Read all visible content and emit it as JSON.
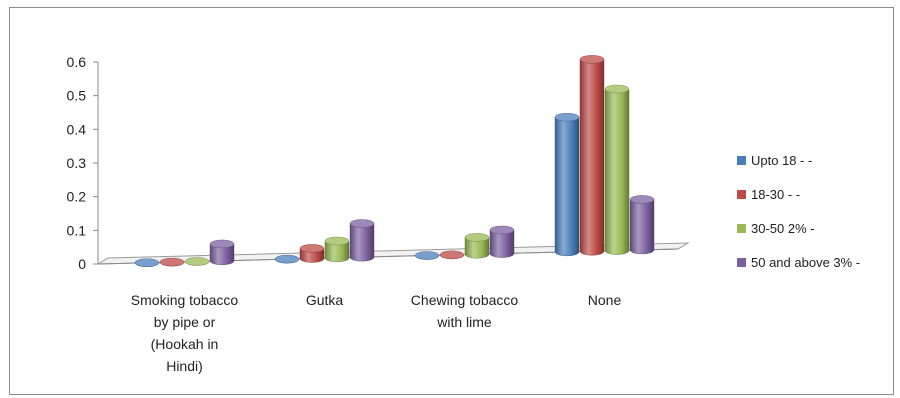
{
  "chart_data": {
    "type": "bar",
    "title": "",
    "xlabel": "",
    "ylabel": "",
    "ylim": [
      0,
      0.6
    ],
    "yticks": [
      "0",
      "0.1",
      "0.2",
      "0.3",
      "0.4",
      "0.5",
      "0.6"
    ],
    "categories": [
      [
        "Smoking tobacco",
        "by pipe or",
        "(Hookah in",
        "Hindi)"
      ],
      [
        "Gutka"
      ],
      [
        "Chewing tobacco",
        "with lime"
      ],
      [
        "None"
      ]
    ],
    "series": [
      {
        "name": "Upto 18 - -",
        "color": "#4a7ebb",
        "values": [
          0.0,
          0.0,
          0.0,
          0.4
        ]
      },
      {
        "name": "18-30 - -",
        "color": "#be4b48",
        "values": [
          0.0,
          0.03,
          0.0,
          0.57
        ]
      },
      {
        "name": "30-50 2% -",
        "color": "#98b954",
        "values": [
          0.0,
          0.05,
          0.05,
          0.48
        ]
      },
      {
        "name": "50 and above 3% -",
        "color": "#7d60a0",
        "values": [
          0.05,
          0.1,
          0.07,
          0.15
        ]
      }
    ],
    "style": "3d-cylinder",
    "grid": false,
    "legend_position": "right"
  }
}
